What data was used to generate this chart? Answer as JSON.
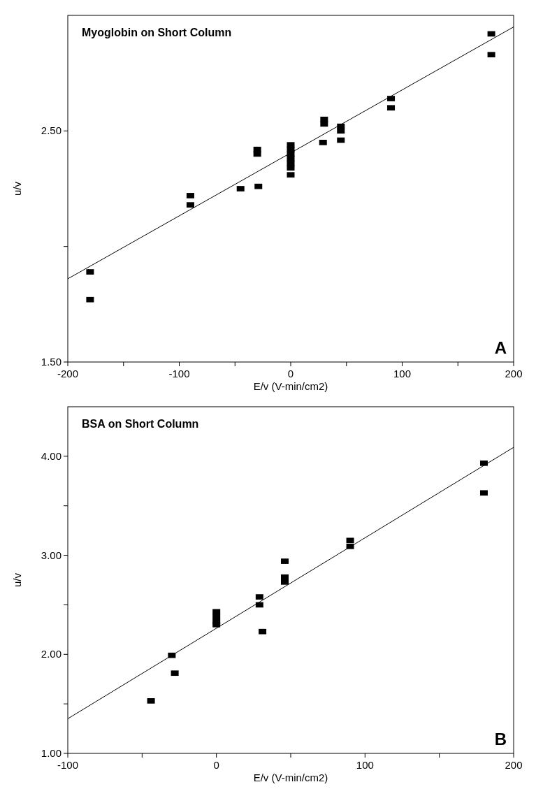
{
  "chart_data": [
    {
      "type": "scatter",
      "xlabel": "E/v (V-min/cm2)",
      "ylabel": "u/v",
      "annotations": [
        "Myoglobin on Short Column",
        "A"
      ],
      "xlim": [
        -200,
        200
      ],
      "ylim": [
        1.5,
        3.0
      ],
      "xticks": [
        -200,
        {
          "value": -150,
          "label": null
        },
        -100,
        {
          "value": -50,
          "label": null
        },
        0,
        {
          "value": 50,
          "label": null
        },
        100,
        {
          "value": 150,
          "label": null
        },
        200
      ],
      "yticks": [
        {
          "value": 1.5,
          "label": "1.50"
        },
        {
          "value": 2.0,
          "label": null
        },
        {
          "value": 2.5,
          "label": "2.50"
        }
      ],
      "series": [
        {
          "marker": "square",
          "color": "#000000",
          "x": [
            -180,
            -180,
            -90,
            -90,
            -45,
            -29,
            -30,
            -30,
            0,
            0,
            0,
            0,
            0,
            0,
            0,
            29,
            30,
            30,
            45,
            45,
            45,
            90,
            90,
            180,
            180
          ],
          "values": [
            1.89,
            1.77,
            2.22,
            2.18,
            2.25,
            2.26,
            2.42,
            2.4,
            2.44,
            2.42,
            2.4,
            2.38,
            2.36,
            2.34,
            2.31,
            2.45,
            2.55,
            2.53,
            2.52,
            2.5,
            2.46,
            2.64,
            2.6,
            2.92,
            2.83
          ]
        },
        {
          "type": "line",
          "color": "#000000",
          "x": [
            -200,
            200
          ],
          "values": [
            1.86,
            2.95
          ]
        }
      ]
    },
    {
      "type": "scatter",
      "xlabel": "E/v (V-min/cm2)",
      "ylabel": "u/v",
      "annotations": [
        "BSA on Short Column",
        "B"
      ],
      "xlim": [
        -100,
        200
      ],
      "ylim": [
        1.0,
        4.5
      ],
      "xticks": [
        -100,
        {
          "value": -50,
          "label": null
        },
        0,
        {
          "value": 50,
          "label": null
        },
        100,
        {
          "value": 150,
          "label": null
        },
        200
      ],
      "yticks": [
        {
          "value": 1.0,
          "label": "1.00"
        },
        {
          "value": 1.5,
          "label": null
        },
        {
          "value": 2.0,
          "label": "2.00"
        },
        {
          "value": 2.5,
          "label": null
        },
        {
          "value": 3.0,
          "label": "3.00"
        },
        {
          "value": 3.5,
          "label": null
        },
        {
          "value": 4.0,
          "label": "4.00"
        }
      ],
      "series": [
        {
          "marker": "square",
          "color": "#000000",
          "x": [
            -44,
            -30,
            -28,
            0,
            0,
            0,
            0,
            29,
            29,
            31,
            46,
            46,
            46,
            90,
            90,
            180,
            180
          ],
          "values": [
            1.53,
            1.99,
            1.81,
            2.43,
            2.38,
            2.33,
            2.3,
            2.58,
            2.5,
            2.23,
            2.94,
            2.78,
            2.73,
            3.15,
            3.09,
            3.93,
            3.63
          ]
        },
        {
          "type": "line",
          "color": "#000000",
          "x": [
            -100,
            200
          ],
          "values": [
            1.35,
            4.09
          ]
        }
      ]
    }
  ]
}
